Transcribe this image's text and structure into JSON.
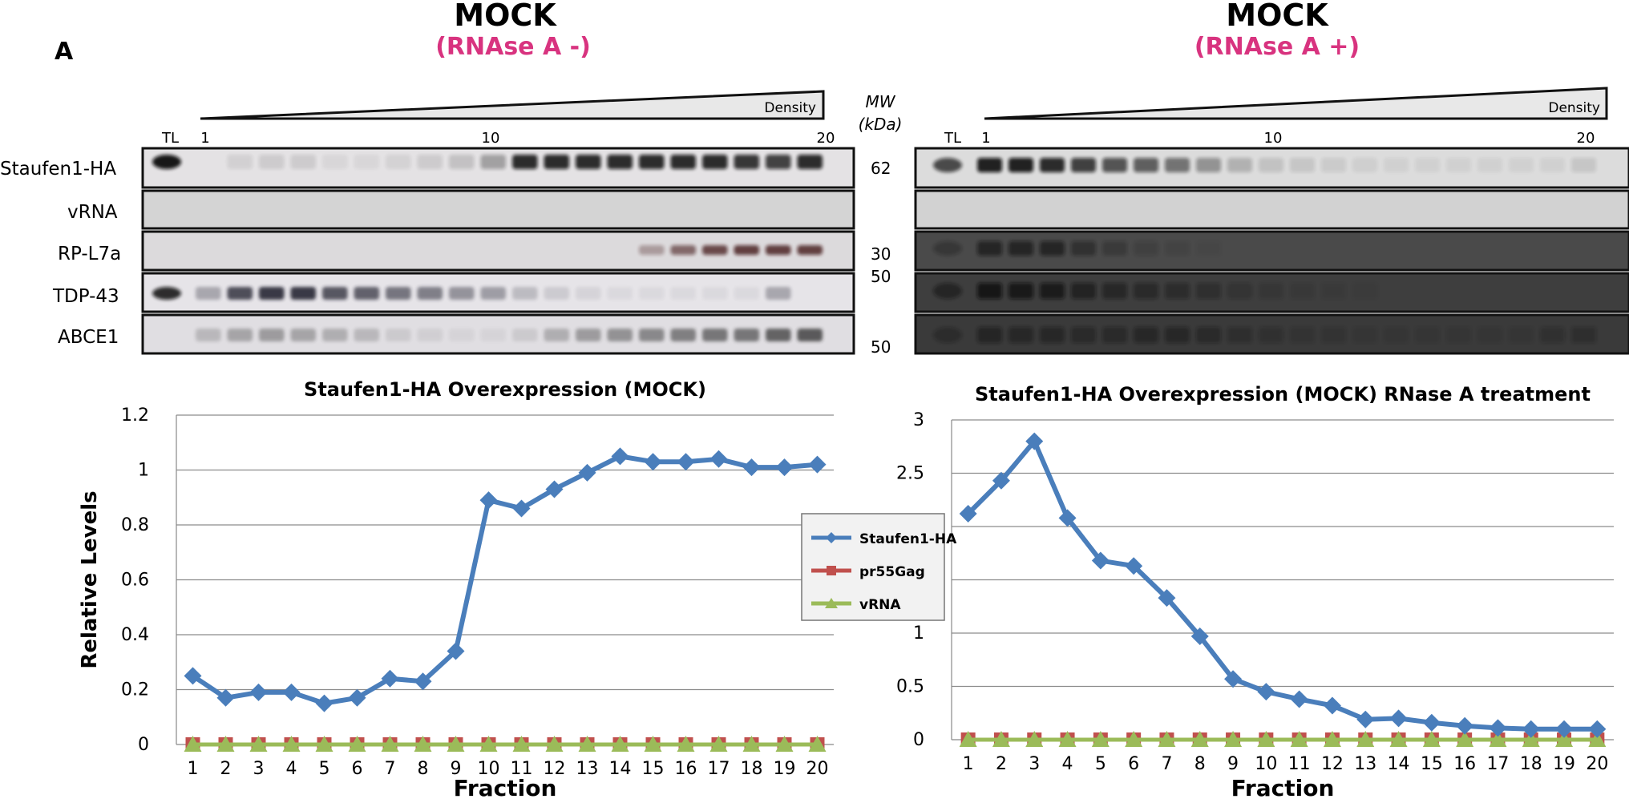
{
  "panel_label": "A",
  "left": {
    "title": "MOCK",
    "subtitle": "(RNAse A -)",
    "tl": "TL",
    "density_label": "Density",
    "lane_ticks": [
      "1",
      "10",
      "20"
    ],
    "mw_header_1": "MW",
    "mw_header_2": "(kDa)",
    "mw_values": [
      "62",
      "30",
      "50",
      "50"
    ]
  },
  "right": {
    "title": "MOCK",
    "subtitle": "(RNAse A +)",
    "tl": "TL",
    "density_label": "Density",
    "lane_ticks": [
      "1",
      "10",
      "20"
    ]
  },
  "blot_rows": [
    "Staufen1-HA",
    "vRNA",
    "RP-L7a",
    "TDP-43",
    "ABCE1"
  ],
  "legend": [
    "Staufen1-HA",
    "pr55Gag",
    "vRNA"
  ],
  "colors": {
    "staufen": "#4a7ebb",
    "gag": "#c0504d",
    "vrna": "#9bbb59",
    "accent": "#d8337f"
  },
  "chart_data": [
    {
      "type": "line",
      "title": "Staufen1-HA Overexpression (MOCK)",
      "xlabel": "Fraction",
      "ylabel": "Relative Levels",
      "x": [
        1,
        2,
        3,
        4,
        5,
        6,
        7,
        8,
        9,
        10,
        11,
        12,
        13,
        14,
        15,
        16,
        17,
        18,
        19,
        20
      ],
      "ylim": [
        0,
        1.2
      ],
      "yticks": [
        "0",
        "0.2",
        "0.4",
        "0.6",
        "0.8",
        "1",
        "1.2"
      ],
      "ytick_values": [
        0,
        0.2,
        0.4,
        0.6,
        0.8,
        1,
        1.2
      ],
      "grid": true,
      "series": [
        {
          "name": "Staufen1-HA",
          "values": [
            0.25,
            0.17,
            0.19,
            0.19,
            0.15,
            0.17,
            0.24,
            0.23,
            0.34,
            0.89,
            0.86,
            0.93,
            0.99,
            1.05,
            1.03,
            1.03,
            1.04,
            1.01,
            1.01,
            1.02
          ]
        },
        {
          "name": "pr55Gag",
          "values": [
            0,
            0,
            0,
            0,
            0,
            0,
            0,
            0,
            0,
            0,
            0,
            0,
            0,
            0,
            0,
            0,
            0,
            0,
            0,
            0
          ]
        },
        {
          "name": "vRNA",
          "values": [
            0,
            0,
            0,
            0,
            0,
            0,
            0,
            0,
            0,
            0,
            0,
            0,
            0,
            0,
            0,
            0,
            0,
            0,
            0,
            0
          ]
        }
      ]
    },
    {
      "type": "line",
      "title": "Staufen1-HA Overexpression (MOCK) RNase A treatment",
      "xlabel": "Fraction",
      "ylabel": "",
      "x": [
        1,
        2,
        3,
        4,
        5,
        6,
        7,
        8,
        9,
        10,
        11,
        12,
        13,
        14,
        15,
        16,
        17,
        18,
        19,
        20
      ],
      "ylim": [
        0,
        3
      ],
      "yticks": [
        "0",
        "0.5",
        "1",
        "1.5",
        "2",
        "2.5",
        "3"
      ],
      "ytick_values": [
        0,
        0.5,
        1,
        1.5,
        2,
        2.5,
        3
      ],
      "grid": true,
      "series": [
        {
          "name": "Staufen1-HA",
          "values": [
            2.12,
            2.43,
            2.8,
            2.08,
            1.68,
            1.63,
            1.33,
            0.97,
            0.57,
            0.45,
            0.38,
            0.32,
            0.19,
            0.2,
            0.16,
            0.13,
            0.11,
            0.1,
            0.1,
            0.1
          ]
        },
        {
          "name": "pr55Gag",
          "values": [
            0,
            0,
            0,
            0,
            0,
            0,
            0,
            0,
            0,
            0,
            0,
            0,
            0,
            0,
            0,
            0,
            0,
            0,
            0,
            0
          ]
        },
        {
          "name": "vRNA",
          "values": [
            0,
            0,
            0,
            0,
            0,
            0,
            0,
            0,
            0,
            0,
            0,
            0,
            0,
            0,
            0,
            0,
            0,
            0,
            0,
            0
          ]
        }
      ]
    }
  ]
}
